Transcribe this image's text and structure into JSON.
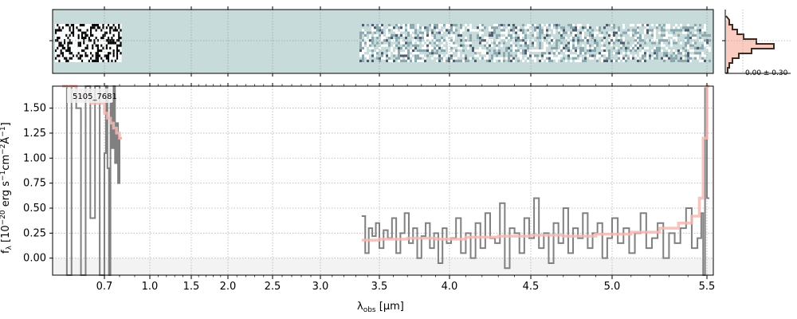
{
  "chart_data": {
    "type": "line",
    "object_label": "5105_7681",
    "ylabel": "f_λ [10^−20 erg s^−1 cm^−2 Å^−1]",
    "xlabel": "λ_obs [μm]",
    "ylim": [
      -0.17,
      1.72
    ],
    "y_ticks": [
      0.0,
      0.25,
      0.5,
      0.75,
      1.0,
      1.25,
      1.5
    ],
    "y_tick_labels": [
      "0.00",
      "0.25",
      "0.50",
      "0.75",
      "1.00",
      "1.25",
      "1.50"
    ],
    "x_ticks": [
      0.7,
      1.0,
      1.5,
      2.0,
      2.5,
      3.0,
      3.5,
      4.0,
      4.5,
      5.0,
      5.5
    ],
    "x_tick_labels": [
      "0.7",
      "1.0",
      "1.5",
      "2.0",
      "2.5",
      "3.0",
      "3.5",
      "4.0",
      "4.5",
      "5.0",
      "5.5"
    ],
    "grid": true,
    "series": [
      {
        "role": "data",
        "color": "#808080",
        "segments": [
          {
            "x": [
              0.61,
              0.62,
              0.63,
              0.64,
              0.65,
              0.66,
              0.67,
              0.68,
              0.69,
              0.7,
              0.71,
              0.72,
              0.73,
              0.74,
              0.75,
              0.76,
              0.77,
              0.78,
              0.79,
              0.8
            ],
            "y": [
              1.72,
              -0.17,
              1.72,
              1.5,
              -0.17,
              1.72,
              0.4,
              1.72,
              -0.17,
              1.05,
              1.72,
              0.9,
              -0.17,
              1.55,
              1.1,
              1.72,
              0.95,
              1.35,
              0.75,
              1.2
            ]
          },
          {
            "x": [
              3.35,
              3.38,
              3.41,
              3.44,
              3.47,
              3.5,
              3.53,
              3.56,
              3.59,
              3.62,
              3.65,
              3.68,
              3.71,
              3.74,
              3.77,
              3.8,
              3.83,
              3.86,
              3.89,
              3.92,
              3.95,
              3.98,
              4.01,
              4.04,
              4.07,
              4.1,
              4.13,
              4.16,
              4.19,
              4.22,
              4.25,
              4.28,
              4.31,
              4.34,
              4.37,
              4.4,
              4.43,
              4.46,
              4.49,
              4.52,
              4.55,
              4.58,
              4.61,
              4.64,
              4.67,
              4.7,
              4.73,
              4.76,
              4.79,
              4.82,
              4.85,
              4.88,
              4.91,
              4.94,
              4.97,
              5.0,
              5.03,
              5.06,
              5.09,
              5.12,
              5.15,
              5.18,
              5.21,
              5.24,
              5.27,
              5.3,
              5.33,
              5.36,
              5.39,
              5.42,
              5.45,
              5.47,
              5.48,
              5.49,
              5.5
            ],
            "y": [
              0.42,
              0.05,
              0.3,
              0.22,
              0.35,
              0.1,
              0.28,
              0.2,
              0.4,
              0.05,
              0.25,
              0.45,
              0.15,
              0.3,
              0.0,
              0.22,
              0.35,
              0.1,
              0.25,
              -0.05,
              0.3,
              0.15,
              0.2,
              0.4,
              0.05,
              0.25,
              0.0,
              0.35,
              0.1,
              0.45,
              0.2,
              0.15,
              0.55,
              -0.1,
              0.3,
              0.25,
              0.05,
              0.4,
              0.2,
              0.6,
              0.1,
              0.25,
              -0.05,
              0.35,
              0.15,
              0.5,
              0.05,
              0.3,
              0.2,
              0.45,
              0.1,
              0.25,
              0.35,
              0.0,
              0.2,
              0.4,
              0.15,
              0.3,
              0.05,
              0.25,
              0.45,
              0.1,
              0.2,
              0.35,
              0.0,
              0.25,
              0.15,
              0.3,
              0.5,
              0.1,
              0.2,
              0.45,
              -0.17,
              1.7,
              0.6
            ]
          }
        ]
      },
      {
        "role": "model",
        "color": "#f4b8b4",
        "segments": [
          {
            "x": [
              0.61,
              0.64,
              0.67,
              0.7,
              0.72,
              0.74,
              0.76,
              0.78,
              0.8
            ],
            "y": [
              1.72,
              1.62,
              1.55,
              1.45,
              1.4,
              1.35,
              1.3,
              1.25,
              1.2
            ]
          },
          {
            "x": [
              3.35,
              3.5,
              3.7,
              3.9,
              4.1,
              4.3,
              4.5,
              4.7,
              4.9,
              5.1,
              5.25,
              5.35,
              5.42,
              5.46,
              5.48,
              5.5
            ],
            "y": [
              0.18,
              0.19,
              0.2,
              0.19,
              0.21,
              0.22,
              0.23,
              0.22,
              0.24,
              0.26,
              0.3,
              0.35,
              0.42,
              0.6,
              1.2,
              1.72
            ]
          }
        ]
      }
    ]
  },
  "panels": {
    "spectrum2d": {
      "fill_color": "#c6dbda",
      "noise_color": "#1a2740"
    },
    "histogram": {
      "label": "0.00 ± 0.30",
      "bar_color": "#f5a08e",
      "step_color": "#3d2a20"
    }
  }
}
